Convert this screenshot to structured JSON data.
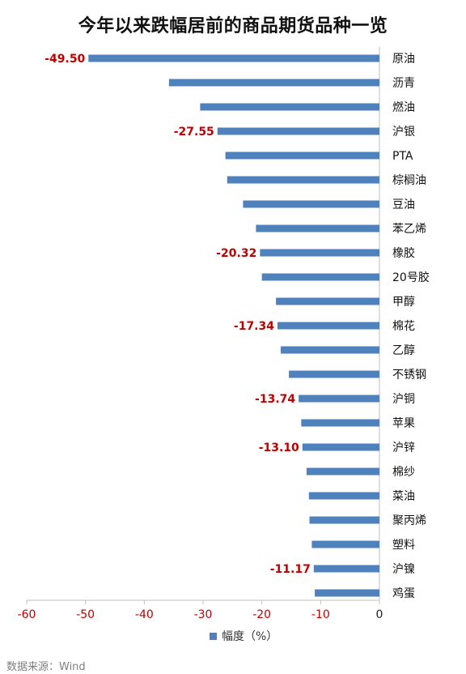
{
  "chart_data": {
    "type": "bar",
    "orientation": "horizontal",
    "title": "今年以来跌幅居前的商品期货品种一览",
    "categories": [
      "原油",
      "沥青",
      "燃油",
      "沪银",
      "PTA",
      "棕榈油",
      "豆油",
      "苯乙烯",
      "橡胶",
      "20号胶",
      "甲醇",
      "棉花",
      "乙醇",
      "不锈钢",
      "沪铜",
      "苹果",
      "沪锌",
      "棉纱",
      "菜油",
      "聚丙烯",
      "塑料",
      "沪镍",
      "鸡蛋"
    ],
    "series": [
      {
        "name": "幅度（%）",
        "values": [
          -49.5,
          -35.8,
          -30.5,
          -27.55,
          -26.2,
          -25.9,
          -23.2,
          -21.0,
          -20.32,
          -20.0,
          -17.6,
          -17.34,
          -16.8,
          -15.4,
          -13.74,
          -13.3,
          -13.1,
          -12.4,
          -12.0,
          -11.9,
          -11.5,
          -11.17,
          -11.0
        ],
        "labels": [
          "-49.50",
          null,
          null,
          "-27.55",
          null,
          null,
          null,
          null,
          "-20.32",
          null,
          null,
          "-17.34",
          null,
          null,
          "-13.74",
          null,
          "-13.10",
          null,
          null,
          null,
          null,
          "-11.17",
          null
        ]
      }
    ],
    "xlim": [
      -60,
      0
    ],
    "xticks": [
      "-60",
      "-50",
      "-40",
      "-30",
      "-20",
      "-10",
      "0"
    ],
    "xtick_values": [
      -60,
      -50,
      -40,
      -30,
      -20,
      -10,
      0
    ],
    "grid": false,
    "legend": "bottom",
    "colors": {
      "bar": "#4F81BD",
      "label": "#C00000",
      "tick": "#C00000",
      "axis": "#BFBFBF"
    }
  },
  "source": "数据来源：Wind"
}
